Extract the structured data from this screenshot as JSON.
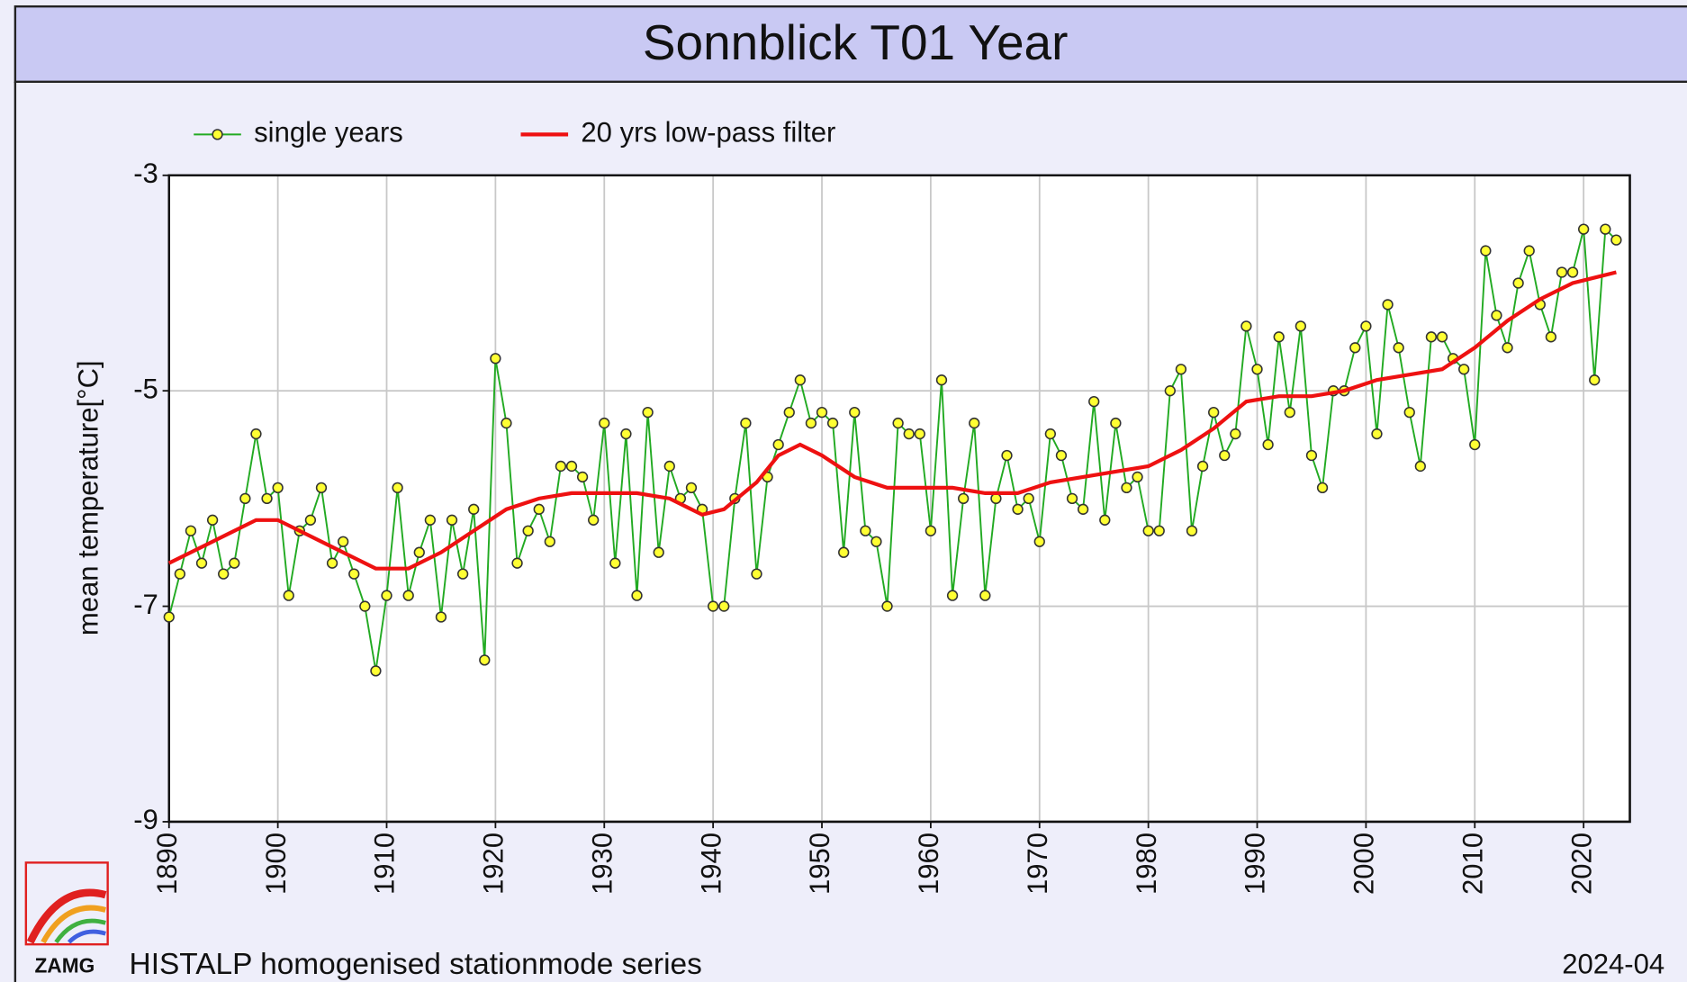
{
  "chart_data": {
    "type": "line",
    "title": "Sonnblick T01 Year",
    "ylabel": "mean temperature[°C]",
    "footer": "HISTALP homogenised stationmode series",
    "date": "2024-04",
    "logo": "ZAMG",
    "xlim": [
      1890,
      2024.25
    ],
    "ylim": [
      -9,
      -3
    ],
    "xticks": [
      1890,
      1900,
      1910,
      1920,
      1930,
      1940,
      1950,
      1960,
      1970,
      1980,
      1990,
      2000,
      2010,
      2020
    ],
    "yticks": [
      -9,
      -7,
      -5,
      -3
    ],
    "grid": true,
    "series": [
      {
        "name": "single years",
        "color": "#22aa22",
        "marker_color": "#ffff33",
        "x": [
          1890,
          1891,
          1892,
          1893,
          1894,
          1895,
          1896,
          1897,
          1898,
          1899,
          1900,
          1901,
          1902,
          1903,
          1904,
          1905,
          1906,
          1907,
          1908,
          1909,
          1910,
          1911,
          1912,
          1913,
          1914,
          1915,
          1916,
          1917,
          1918,
          1919,
          1920,
          1921,
          1922,
          1923,
          1924,
          1925,
          1926,
          1927,
          1928,
          1929,
          1930,
          1931,
          1932,
          1933,
          1934,
          1935,
          1936,
          1937,
          1938,
          1939,
          1940,
          1941,
          1942,
          1943,
          1944,
          1945,
          1946,
          1947,
          1948,
          1949,
          1950,
          1951,
          1952,
          1953,
          1954,
          1955,
          1956,
          1957,
          1958,
          1959,
          1960,
          1961,
          1962,
          1963,
          1964,
          1965,
          1966,
          1967,
          1968,
          1969,
          1970,
          1971,
          1972,
          1973,
          1974,
          1975,
          1976,
          1977,
          1978,
          1979,
          1980,
          1981,
          1982,
          1983,
          1984,
          1985,
          1986,
          1987,
          1988,
          1989,
          1990,
          1991,
          1992,
          1993,
          1994,
          1995,
          1996,
          1997,
          1998,
          1999,
          2000,
          2001,
          2002,
          2003,
          2004,
          2005,
          2006,
          2007,
          2008,
          2009,
          2010,
          2011,
          2012,
          2013,
          2014,
          2015,
          2016,
          2017,
          2018,
          2019,
          2020,
          2021,
          2022,
          2023
        ],
        "values": [
          -7.1,
          -6.7,
          -6.3,
          -6.6,
          -6.2,
          -6.7,
          -6.6,
          -6.0,
          -5.4,
          -6.0,
          -5.9,
          -6.9,
          -6.3,
          -6.2,
          -5.9,
          -6.6,
          -6.4,
          -6.7,
          -7.0,
          -7.6,
          -6.9,
          -5.9,
          -6.9,
          -6.5,
          -6.2,
          -7.1,
          -6.2,
          -6.7,
          -6.1,
          -7.5,
          -4.7,
          -5.3,
          -6.6,
          -6.3,
          -6.1,
          -6.4,
          -5.7,
          -5.7,
          -5.8,
          -6.2,
          -5.3,
          -6.6,
          -5.4,
          -6.9,
          -5.2,
          -6.5,
          -5.7,
          -6.0,
          -5.9,
          -6.1,
          -7.0,
          -7.0,
          -6.0,
          -5.3,
          -6.7,
          -5.8,
          -5.5,
          -5.2,
          -4.9,
          -5.3,
          -5.2,
          -5.3,
          -6.5,
          -5.2,
          -6.3,
          -6.4,
          -7.0,
          -5.3,
          -5.4,
          -5.4,
          -6.3,
          -4.9,
          -6.9,
          -6.0,
          -5.3,
          -6.9,
          -6.0,
          -5.6,
          -6.1,
          -6.0,
          -6.4,
          -5.4,
          -5.6,
          -6.0,
          -6.1,
          -5.1,
          -6.2,
          -5.3,
          -5.9,
          -5.8,
          -6.3,
          -6.3,
          -5.0,
          -4.8,
          -6.3,
          -5.7,
          -5.2,
          -5.6,
          -5.4,
          -4.4,
          -4.8,
          -5.5,
          -4.5,
          -5.2,
          -4.4,
          -5.6,
          -5.9,
          -5.0,
          -5.0,
          -4.6,
          -4.4,
          -5.4,
          -4.2,
          -4.6,
          -5.2,
          -5.7,
          -4.5,
          -4.5,
          -4.7,
          -4.8,
          -5.5,
          -3.7,
          -4.3,
          -4.6,
          -4.0,
          -3.7,
          -4.2,
          -4.5,
          -3.9,
          -3.9,
          -3.5,
          -4.9,
          -3.5,
          -3.6
        ]
      },
      {
        "name": "20 yrs low-pass filter",
        "color": "#ee1111",
        "x": [
          1890,
          1894,
          1898,
          1900,
          1903,
          1906,
          1909,
          1912,
          1915,
          1918,
          1921,
          1924,
          1927,
          1930,
          1933,
          1936,
          1939,
          1941,
          1944,
          1946,
          1948,
          1950,
          1953,
          1956,
          1959,
          1962,
          1965,
          1968,
          1971,
          1974,
          1977,
          1980,
          1983,
          1986,
          1989,
          1992,
          1995,
          1998,
          2001,
          2004,
          2007,
          2010,
          2013,
          2016,
          2019,
          2023
        ],
        "values": [
          -6.6,
          -6.4,
          -6.2,
          -6.2,
          -6.35,
          -6.5,
          -6.65,
          -6.65,
          -6.5,
          -6.3,
          -6.1,
          -6.0,
          -5.95,
          -5.95,
          -5.95,
          -6.0,
          -6.15,
          -6.1,
          -5.85,
          -5.6,
          -5.5,
          -5.6,
          -5.8,
          -5.9,
          -5.9,
          -5.9,
          -5.95,
          -5.95,
          -5.85,
          -5.8,
          -5.75,
          -5.7,
          -5.55,
          -5.35,
          -5.1,
          -5.05,
          -5.05,
          -5.0,
          -4.9,
          -4.85,
          -4.8,
          -4.6,
          -4.35,
          -4.15,
          -4.0,
          -3.9
        ]
      }
    ]
  }
}
